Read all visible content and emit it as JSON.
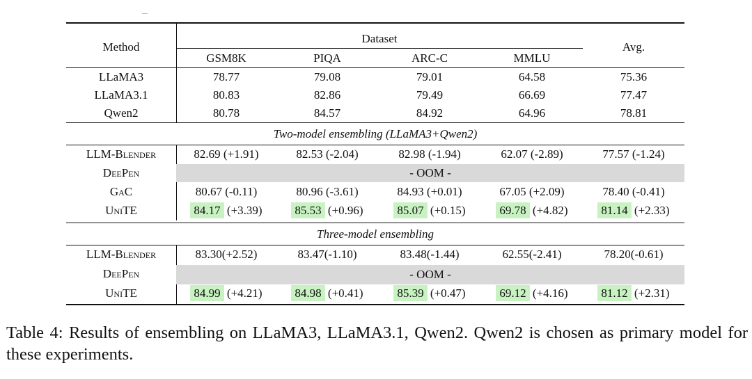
{
  "table": {
    "header": {
      "method": "Method",
      "dataset": "Dataset",
      "avg": "Avg.",
      "columns": [
        "GSM8K",
        "PIQA",
        "ARC-C",
        "MMLU"
      ]
    },
    "base_rows": [
      {
        "method": "LLaMA3",
        "values": [
          "78.77",
          "79.08",
          "79.01",
          "64.58",
          "75.36"
        ]
      },
      {
        "method": "LLaMA3.1",
        "values": [
          "80.83",
          "82.86",
          "79.49",
          "66.69",
          "77.47"
        ]
      },
      {
        "method": "Qwen2",
        "values": [
          "80.78",
          "84.57",
          "84.92",
          "64.96",
          "78.81"
        ]
      }
    ],
    "section1": {
      "title": "Two-model ensembling (LLaMA3+Qwen2)",
      "llm_blender": {
        "method": "LLM-Blender",
        "values": [
          "82.69 (+1.91)",
          "82.53 (-2.04)",
          "82.98 (-1.94)",
          "62.07 (-2.89)",
          "77.57 (-1.24)"
        ]
      },
      "deepen": {
        "method": "DeePen",
        "span": "- OOM -"
      },
      "gac": {
        "method": "GaC",
        "values": [
          "80.67 (-0.11)",
          "80.96 (-3.61)",
          "84.93 (+0.01)",
          "67.05 (+2.09)",
          "78.40 (-0.41)"
        ]
      },
      "unite": {
        "method": "UniTE",
        "scores": [
          "84.17",
          "85.53",
          "85.07",
          "69.78",
          "81.14"
        ],
        "deltas": [
          "(+3.39)",
          "(+0.96)",
          "(+0.15)",
          "(+4.82)",
          "(+2.33)"
        ]
      }
    },
    "section2": {
      "title": "Three-model ensembling",
      "llm_blender": {
        "method": "LLM-Blender",
        "values": [
          "83.30(+2.52)",
          "83.47(-1.10)",
          "83.48(-1.44)",
          "62.55(-2.41)",
          "78.20(-0.61)"
        ]
      },
      "deepen": {
        "method": "DeePen",
        "span": "- OOM -"
      },
      "unite": {
        "method": "UniTE",
        "scores": [
          "84.99",
          "84.98",
          "85.39",
          "69.12",
          "81.12"
        ],
        "deltas": [
          "(+4.21)",
          "(+0.41)",
          "(+0.47)",
          "(+4.16)",
          "(+2.31)"
        ]
      }
    }
  },
  "caption": "Table 4: Results of ensembling on LLaMA3, LLaMA3.1, Qwen2. Qwen2 is chosen as primary model for these experiments.",
  "colors": {
    "highlight": "#c9f2c3",
    "gray_row": "#d9d9d9"
  }
}
